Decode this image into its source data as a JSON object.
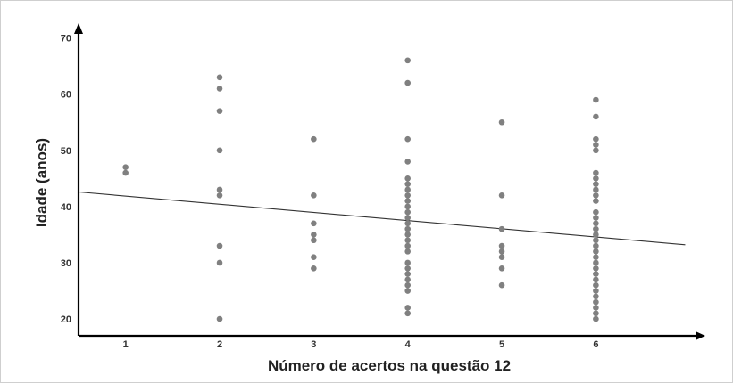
{
  "chart_data": {
    "type": "scatter",
    "xlabel": "Número de acertos na questão 12",
    "ylabel": "Idade (anos)",
    "x_ticks": [
      "1",
      "2",
      "3",
      "4",
      "5",
      "6"
    ],
    "y_ticks": [
      "20",
      "30",
      "40",
      "50",
      "60",
      "70"
    ],
    "xlim": [
      0.5,
      7.05
    ],
    "ylim": [
      17,
      72
    ],
    "grid": false,
    "colors": {
      "points": "#808080",
      "axis": "#000000",
      "trend": "#333333"
    },
    "points": [
      {
        "x": 1,
        "y": 47
      },
      {
        "x": 1,
        "y": 46
      },
      {
        "x": 2,
        "y": 63
      },
      {
        "x": 2,
        "y": 61
      },
      {
        "x": 2,
        "y": 57
      },
      {
        "x": 2,
        "y": 50
      },
      {
        "x": 2,
        "y": 43
      },
      {
        "x": 2,
        "y": 42
      },
      {
        "x": 2,
        "y": 33
      },
      {
        "x": 2,
        "y": 30
      },
      {
        "x": 2,
        "y": 20
      },
      {
        "x": 3,
        "y": 52
      },
      {
        "x": 3,
        "y": 42
      },
      {
        "x": 3,
        "y": 37
      },
      {
        "x": 3,
        "y": 35
      },
      {
        "x": 3,
        "y": 34
      },
      {
        "x": 3,
        "y": 31
      },
      {
        "x": 3,
        "y": 29
      },
      {
        "x": 4,
        "y": 66
      },
      {
        "x": 4,
        "y": 62
      },
      {
        "x": 4,
        "y": 52
      },
      {
        "x": 4,
        "y": 48
      },
      {
        "x": 4,
        "y": 45
      },
      {
        "x": 4,
        "y": 44
      },
      {
        "x": 4,
        "y": 43
      },
      {
        "x": 4,
        "y": 42
      },
      {
        "x": 4,
        "y": 41
      },
      {
        "x": 4,
        "y": 40
      },
      {
        "x": 4,
        "y": 39
      },
      {
        "x": 4,
        "y": 38
      },
      {
        "x": 4,
        "y": 37
      },
      {
        "x": 4,
        "y": 36
      },
      {
        "x": 4,
        "y": 35
      },
      {
        "x": 4,
        "y": 34
      },
      {
        "x": 4,
        "y": 33
      },
      {
        "x": 4,
        "y": 32
      },
      {
        "x": 4,
        "y": 30
      },
      {
        "x": 4,
        "y": 29
      },
      {
        "x": 4,
        "y": 28
      },
      {
        "x": 4,
        "y": 27
      },
      {
        "x": 4,
        "y": 26
      },
      {
        "x": 4,
        "y": 25
      },
      {
        "x": 4,
        "y": 22
      },
      {
        "x": 4,
        "y": 21
      },
      {
        "x": 5,
        "y": 55
      },
      {
        "x": 5,
        "y": 42
      },
      {
        "x": 5,
        "y": 36
      },
      {
        "x": 5,
        "y": 33
      },
      {
        "x": 5,
        "y": 32
      },
      {
        "x": 5,
        "y": 31
      },
      {
        "x": 5,
        "y": 29
      },
      {
        "x": 5,
        "y": 26
      },
      {
        "x": 6,
        "y": 59
      },
      {
        "x": 6,
        "y": 56
      },
      {
        "x": 6,
        "y": 52
      },
      {
        "x": 6,
        "y": 51
      },
      {
        "x": 6,
        "y": 50
      },
      {
        "x": 6,
        "y": 46
      },
      {
        "x": 6,
        "y": 45
      },
      {
        "x": 6,
        "y": 44
      },
      {
        "x": 6,
        "y": 43
      },
      {
        "x": 6,
        "y": 42
      },
      {
        "x": 6,
        "y": 41
      },
      {
        "x": 6,
        "y": 39
      },
      {
        "x": 6,
        "y": 38
      },
      {
        "x": 6,
        "y": 37
      },
      {
        "x": 6,
        "y": 36
      },
      {
        "x": 6,
        "y": 35
      },
      {
        "x": 6,
        "y": 34
      },
      {
        "x": 6,
        "y": 33
      },
      {
        "x": 6,
        "y": 32
      },
      {
        "x": 6,
        "y": 31
      },
      {
        "x": 6,
        "y": 30
      },
      {
        "x": 6,
        "y": 29
      },
      {
        "x": 6,
        "y": 28
      },
      {
        "x": 6,
        "y": 27
      },
      {
        "x": 6,
        "y": 26
      },
      {
        "x": 6,
        "y": 25
      },
      {
        "x": 6,
        "y": 24
      },
      {
        "x": 6,
        "y": 23
      },
      {
        "x": 6,
        "y": 22
      },
      {
        "x": 6,
        "y": 21
      },
      {
        "x": 6,
        "y": 20
      }
    ],
    "trend_line": {
      "x": [
        0.5,
        6.95
      ],
      "y": [
        42.6,
        33.2
      ]
    }
  }
}
